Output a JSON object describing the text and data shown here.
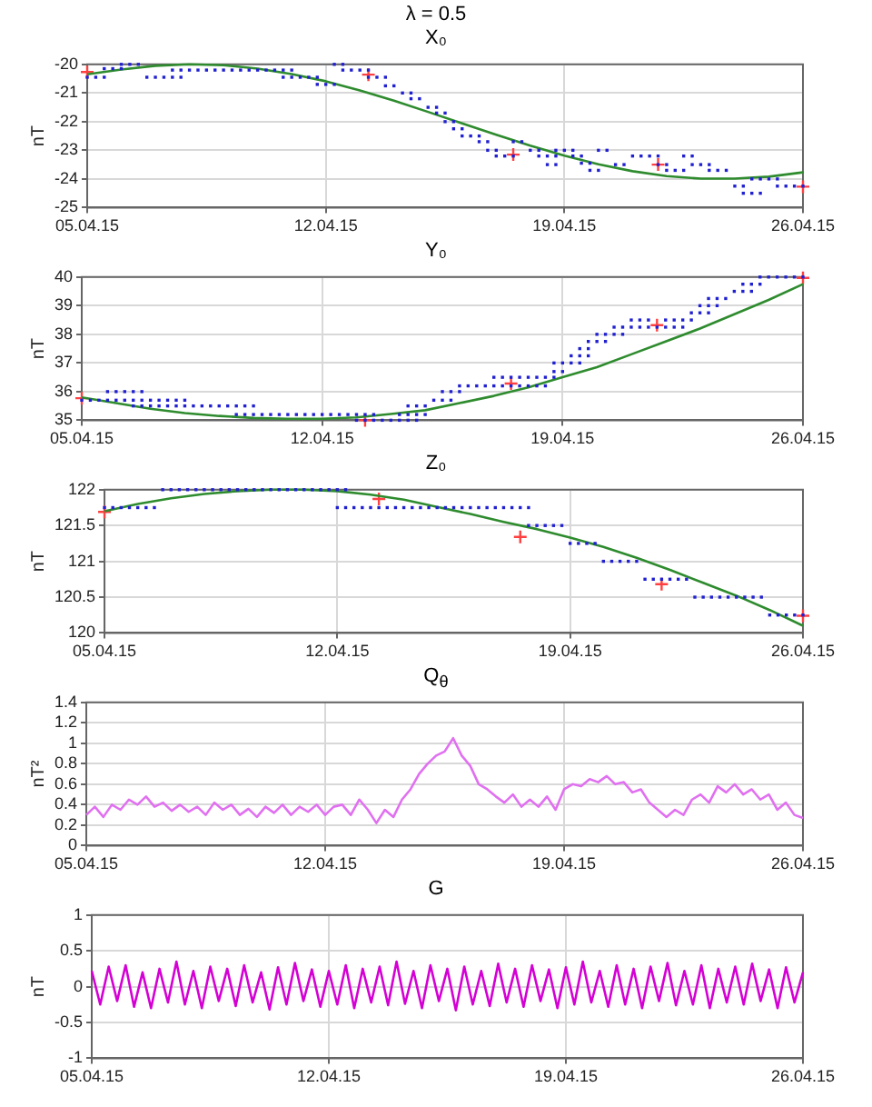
{
  "chart_data": [
    {
      "type": "line",
      "annotations": [
        "λ = 0.5"
      ],
      "title": "X₀",
      "ylabel": "nT",
      "xlim": [
        "--04-05",
        "--04-26"
      ],
      "xticks": [
        {
          "value": "--04-05",
          "label": "05.04.15"
        },
        {
          "value": "--04-12",
          "label": "12.04.15"
        },
        {
          "value": "--04-19",
          "label": "19.04.15"
        },
        {
          "value": "--04-26",
          "label": "26.04.15"
        }
      ],
      "ylim": [
        -25,
        -20
      ],
      "yticks": [
        -25,
        -24,
        -23,
        -22,
        -21,
        -20
      ],
      "grid": true,
      "series": [
        {
          "type": "scatter",
          "marker": "square",
          "color": "#2020d0",
          "x": [
            "--04-05",
            "--04-05T06:00",
            "--04-05T12:00",
            "--04-05T12:00",
            "--04-05T18:00",
            "--04-06",
            "--04-06",
            "--04-06T06:00",
            "--04-06T12:00",
            "--04-06T18:00",
            "--04-07",
            "--04-07T06:00",
            "--04-07T12:00",
            "--04-07T18:00",
            "--04-07T12:00",
            "--04-07T18:00",
            "--04-08",
            "--04-08T06:00",
            "--04-08T12:00",
            "--04-08T18:00",
            "--04-09",
            "--04-09T06:00",
            "--04-09T12:00",
            "--04-09T18:00",
            "--04-10",
            "--04-10T06:00",
            "--04-10T12:00",
            "--04-10T18:00",
            "--04-11",
            "--04-10T18:00",
            "--04-11",
            "--04-11T06:00",
            "--04-11T12:00",
            "--04-11T18:00",
            "--04-11T18:00",
            "--04-12",
            "--04-12T06:00",
            "--04-12T06:00",
            "--04-12T12:00",
            "--04-12T12:00",
            "--04-12T18:00",
            "--04-13",
            "--04-13T06:00",
            "--04-13T06:00",
            "--04-13T12:00",
            "--04-13T18:00",
            "--04-13T18:00",
            "--04-14",
            "--04-14T06:00",
            "--04-14T12:00",
            "--04-14T12:00",
            "--04-14T18:00",
            "--04-15",
            "--04-15T06:00",
            "--04-15T06:00",
            "--04-15T12:00",
            "--04-15T12:00",
            "--04-15T18:00",
            "--04-15T18:00",
            "--04-16",
            "--04-16",
            "--04-16T06:00",
            "--04-16T12:00",
            "--04-16T12:00",
            "--04-16T18:00",
            "--04-16T18:00",
            "--04-17",
            "--04-17",
            "--04-17T06:00",
            "--04-17T12:00",
            "--04-17T12:00",
            "--04-17T18:00",
            "--04-18",
            "--04-18T06:00",
            "--04-18T06:00",
            "--04-18T12:00",
            "--04-18T18:00",
            "--04-18T12:00",
            "--04-18T18:00",
            "--04-18T18:00",
            "--04-19",
            "--04-19T06:00",
            "--04-19T06:00",
            "--04-19T12:00",
            "--04-19T12:00",
            "--04-19T18:00",
            "--04-19T18:00",
            "--04-20",
            "--04-20",
            "--04-20T06:00",
            "--04-20T12:00",
            "--04-20T18:00",
            "--04-21",
            "--04-21T06:00",
            "--04-21T12:00",
            "--04-21T18:00",
            "--04-21T18:00",
            "--04-22",
            "--04-22",
            "--04-22T06:00",
            "--04-22T12:00",
            "--04-22T12:00",
            "--04-22T18:00",
            "--04-22T18:00",
            "--04-23",
            "--04-23T06:00",
            "--04-23T06:00",
            "--04-23T12:00",
            "--04-23T18:00",
            "--04-24",
            "--04-24T06:00",
            "--04-24T06:00",
            "--04-24T12:00",
            "--04-24T18:00",
            "--04-24T12:00",
            "--04-24T18:00",
            "--04-25",
            "--04-25T06:00",
            "--04-25T06:00",
            "--04-25T12:00",
            "--04-25T18:00",
            "--04-26"
          ],
          "values": [
            -20.45,
            -20.45,
            -20.45,
            -20.15,
            -20.15,
            -20.15,
            -20.0,
            -20.0,
            -20.0,
            -20.45,
            -20.45,
            -20.45,
            -20.45,
            -20.45,
            -20.2,
            -20.2,
            -20.2,
            -20.2,
            -20.2,
            -20.2,
            -20.2,
            -20.2,
            -20.2,
            -20.2,
            -20.2,
            -20.2,
            -20.2,
            -20.2,
            -20.2,
            -20.45,
            -20.45,
            -20.45,
            -20.45,
            -20.45,
            -20.7,
            -20.7,
            -20.7,
            -20.0,
            -20.0,
            -20.2,
            -20.2,
            -20.2,
            -20.2,
            -20.45,
            -20.45,
            -20.45,
            -20.75,
            -20.75,
            -21.0,
            -21.0,
            -21.2,
            -21.2,
            -21.5,
            -21.5,
            -21.7,
            -21.7,
            -22.0,
            -22.0,
            -22.25,
            -22.25,
            -22.5,
            -22.5,
            -22.5,
            -22.7,
            -22.7,
            -23.0,
            -23.0,
            -23.2,
            -23.2,
            -23.2,
            -22.7,
            -22.7,
            -23.0,
            -23.0,
            -23.2,
            -23.2,
            -23.2,
            -23.5,
            -23.5,
            -23.0,
            -23.0,
            -23.0,
            -23.2,
            -23.2,
            -23.45,
            -23.45,
            -23.7,
            -23.7,
            -23.0,
            -23.0,
            -23.5,
            -23.5,
            -23.2,
            -23.2,
            -23.2,
            -23.2,
            -23.5,
            -23.5,
            -23.7,
            -23.7,
            -23.7,
            -23.2,
            -23.2,
            -23.5,
            -23.5,
            -23.5,
            -23.7,
            -23.7,
            -23.7,
            -24.25,
            -24.25,
            -24.5,
            -24.5,
            -24.5,
            -24.0,
            -24.0,
            -24.0,
            -24.0,
            -24.25,
            -24.25,
            -24.25,
            -24.25
          ]
        },
        {
          "color": "#2e8b2e",
          "x": [
            "--04-05",
            "--04-06",
            "--04-07",
            "--04-08",
            "--04-09",
            "--04-10",
            "--04-11",
            "--04-12",
            "--04-13",
            "--04-14",
            "--04-15",
            "--04-16",
            "--04-17",
            "--04-18",
            "--04-19",
            "--04-20",
            "--04-21",
            "--04-22",
            "--04-23",
            "--04-24",
            "--04-25",
            "--04-26"
          ],
          "values": [
            -20.35,
            -20.18,
            -20.05,
            -20.0,
            -20.03,
            -20.15,
            -20.34,
            -20.59,
            -20.91,
            -21.27,
            -21.66,
            -22.06,
            -22.46,
            -22.84,
            -23.19,
            -23.49,
            -23.73,
            -23.9,
            -23.99,
            -23.99,
            -23.92,
            -23.77
          ]
        },
        {
          "type": "scatter",
          "marker": "cross",
          "color": "#ff4040",
          "x": [
            "--04-05",
            "--04-13T06:00",
            "--04-17T12:00",
            "--04-21T18:00",
            "--04-26"
          ],
          "values": [
            -20.27,
            -20.36,
            -23.15,
            -23.5,
            -24.27
          ]
        }
      ]
    },
    {
      "type": "line",
      "title": "Y₀",
      "ylabel": "nT",
      "xlim": [
        "--04-05",
        "--04-26"
      ],
      "xticks": [
        {
          "value": "--04-05",
          "label": "05.04.15"
        },
        {
          "value": "--04-12",
          "label": "12.04.15"
        },
        {
          "value": "--04-19",
          "label": "19.04.15"
        },
        {
          "value": "--04-26",
          "label": "26.04.15"
        }
      ],
      "ylim": [
        35,
        40
      ],
      "yticks": [
        35,
        36,
        37,
        38,
        39,
        40
      ],
      "grid": true,
      "series": [
        {
          "type": "scatter",
          "marker": "square",
          "color": "#2020d0",
          "x": [
            "--04-05",
            "--04-05T06:00",
            "--04-05T12:00",
            "--04-05T18:00",
            "--04-05T18:00",
            "--04-06",
            "--04-06T06:00",
            "--04-06T12:00",
            "--04-06T18:00",
            "--04-06",
            "--04-06T06:00",
            "--04-06T12:00",
            "--04-06T18:00",
            "--04-07",
            "--04-07T06:00",
            "--04-07T12:00",
            "--04-07T18:00",
            "--04-08",
            "--04-06T12:00",
            "--04-06T18:00",
            "--04-07",
            "--04-07T06:00",
            "--04-07T12:00",
            "--04-07T18:00",
            "--04-08",
            "--04-08T06:00",
            "--04-08T12:00",
            "--04-08T18:00",
            "--04-09",
            "--04-09T06:00",
            "--04-09T12:00",
            "--04-09T18:00",
            "--04-10",
            "--04-09T12:00",
            "--04-09T18:00",
            "--04-10",
            "--04-10T06:00",
            "--04-10T12:00",
            "--04-10T18:00",
            "--04-11",
            "--04-11T06:00",
            "--04-11T12:00",
            "--04-11T18:00",
            "--04-12",
            "--04-12T06:00",
            "--04-12T12:00",
            "--04-12T18:00",
            "--04-13",
            "--04-13T06:00",
            "--04-13T12:00",
            "--04-13",
            "--04-13T06:00",
            "--04-13T12:00",
            "--04-13T18:00",
            "--04-14",
            "--04-14T06:00",
            "--04-14T12:00",
            "--04-14T18:00",
            "--04-14T06:00",
            "--04-14T12:00",
            "--04-14T18:00",
            "--04-15",
            "--04-14T12:00",
            "--04-14T18:00",
            "--04-15",
            "--04-15T06:00",
            "--04-15T12:00",
            "--04-15T18:00",
            "--04-15T12:00",
            "--04-15T18:00",
            "--04-16",
            "--04-16",
            "--04-16T06:00",
            "--04-16T12:00",
            "--04-16T18:00",
            "--04-17",
            "--04-17T06:00",
            "--04-17T12:00",
            "--04-17T18:00",
            "--04-18",
            "--04-18T06:00",
            "--04-18T12:00",
            "--04-17",
            "--04-17T06:00",
            "--04-17T12:00",
            "--04-17T18:00",
            "--04-18",
            "--04-18T06:00",
            "--04-18T12:00",
            "--04-18T18:00",
            "--04-18T18:00",
            "--04-19",
            "--04-18T18:00",
            "--04-19",
            "--04-19T06:00",
            "--04-19T12:00",
            "--04-19T06:00",
            "--04-19T12:00",
            "--04-19T18:00",
            "--04-19T12:00",
            "--04-19T18:00",
            "--04-19T18:00",
            "--04-20",
            "--04-20T06:00",
            "--04-20",
            "--04-20T06:00",
            "--04-20T12:00",
            "--04-20T18:00",
            "--04-20T12:00",
            "--04-20T18:00",
            "--04-21",
            "--04-21T06:00",
            "--04-21T12:00",
            "--04-21T18:00",
            "--04-22",
            "--04-22T06:00",
            "--04-22T12:00",
            "--04-21",
            "--04-21T06:00",
            "--04-21T12:00",
            "--04-22",
            "--04-22T06:00",
            "--04-22T12:00",
            "--04-22T18:00",
            "--04-22T18:00",
            "--04-23",
            "--04-23T06:00",
            "--04-23",
            "--04-23T06:00",
            "--04-23T12:00",
            "--04-23T06:00",
            "--04-23T12:00",
            "--04-23T18:00",
            "--04-24",
            "--04-24T06:00",
            "--04-24T12:00",
            "--04-24T06:00",
            "--04-24T12:00",
            "--04-24T18:00",
            "--04-24T18:00",
            "--04-25",
            "--04-25T06:00",
            "--04-25T12:00",
            "--04-25T18:00",
            "--04-26"
          ],
          "values": [
            35.7,
            35.7,
            35.7,
            35.7,
            36.0,
            36.0,
            36.0,
            36.0,
            36.0,
            35.7,
            35.7,
            35.7,
            35.7,
            35.7,
            35.7,
            35.7,
            35.7,
            35.7,
            35.5,
            35.5,
            35.5,
            35.5,
            35.5,
            35.5,
            35.5,
            35.5,
            35.5,
            35.5,
            35.5,
            35.5,
            35.5,
            35.5,
            35.5,
            35.2,
            35.2,
            35.2,
            35.2,
            35.2,
            35.2,
            35.2,
            35.2,
            35.2,
            35.2,
            35.2,
            35.2,
            35.2,
            35.2,
            35.2,
            35.2,
            35.2,
            35.0,
            35.0,
            35.0,
            35.0,
            35.0,
            35.0,
            35.0,
            35.0,
            35.2,
            35.2,
            35.2,
            35.2,
            35.5,
            35.5,
            35.5,
            35.7,
            35.7,
            35.7,
            36.0,
            36.0,
            36.0,
            36.2,
            36.2,
            36.2,
            36.2,
            36.2,
            36.2,
            36.2,
            36.2,
            36.2,
            36.2,
            36.2,
            36.5,
            36.5,
            36.5,
            36.5,
            36.5,
            36.5,
            36.5,
            36.5,
            36.7,
            36.7,
            37.0,
            37.0,
            37.0,
            37.0,
            37.25,
            37.25,
            37.25,
            37.5,
            37.5,
            37.75,
            37.75,
            37.75,
            38.0,
            38.0,
            38.0,
            38.0,
            38.25,
            38.25,
            38.25,
            38.25,
            38.25,
            38.25,
            38.25,
            38.25,
            38.25,
            38.5,
            38.5,
            38.5,
            38.5,
            38.5,
            38.5,
            38.5,
            38.75,
            38.75,
            38.75,
            39.0,
            39.0,
            39.0,
            39.25,
            39.25,
            39.25,
            39.5,
            39.5,
            39.5,
            39.75,
            39.75,
            39.75,
            40.0,
            40.0,
            40.0,
            40.0,
            40.0,
            40.0
          ]
        },
        {
          "color": "#2e8b2e",
          "x": [
            "--04-05",
            "--04-06",
            "--04-07",
            "--04-08",
            "--04-09",
            "--04-10",
            "--04-11",
            "--04-12",
            "--04-13",
            "--04-14",
            "--04-15",
            "--04-16",
            "--04-17",
            "--04-18",
            "--04-19",
            "--04-20",
            "--04-21",
            "--04-22",
            "--04-23",
            "--04-24",
            "--04-25",
            "--04-26"
          ],
          "values": [
            35.8,
            35.6,
            35.4,
            35.25,
            35.15,
            35.08,
            35.05,
            35.05,
            35.1,
            35.22,
            35.35,
            35.6,
            35.85,
            36.15,
            36.5,
            36.85,
            37.3,
            37.75,
            38.2,
            38.7,
            39.2,
            39.75
          ]
        },
        {
          "type": "scatter",
          "marker": "cross",
          "color": "#ff4040",
          "x": [
            "--04-05",
            "--04-13T06:00",
            "--04-17T12:00",
            "--04-21T18:00",
            "--04-26"
          ],
          "values": [
            35.77,
            35.0,
            36.28,
            38.32,
            39.97
          ]
        }
      ]
    },
    {
      "type": "line",
      "title": "Z₀",
      "ylabel": "nT",
      "xlim": [
        "--04-05",
        "--04-26"
      ],
      "xticks": [
        {
          "value": "--04-05",
          "label": "05.04.15"
        },
        {
          "value": "--04-12",
          "label": "12.04.15"
        },
        {
          "value": "--04-19",
          "label": "19.04.15"
        },
        {
          "value": "--04-26",
          "label": "26.04.15"
        }
      ],
      "ylim": [
        120,
        122
      ],
      "yticks": [
        120,
        120.5,
        121,
        121.5,
        122
      ],
      "grid": true,
      "series": [
        {
          "type": "scatter",
          "marker": "square",
          "color": "#2020d0",
          "x": [
            "--04-05",
            "--04-05T06:00",
            "--04-05T12:00",
            "--04-05T18:00",
            "--04-06",
            "--04-06T06:00",
            "--04-06T12:00",
            "--04-06T18:00",
            "--04-07",
            "--04-07T06:00",
            "--04-07T12:00",
            "--04-07T18:00",
            "--04-08",
            "--04-08T06:00",
            "--04-08T12:00",
            "--04-08T18:00",
            "--04-09",
            "--04-09T06:00",
            "--04-09T12:00",
            "--04-09T18:00",
            "--04-10",
            "--04-10T06:00",
            "--04-10T12:00",
            "--04-10T18:00",
            "--04-11",
            "--04-11T06:00",
            "--04-11T12:00",
            "--04-11T18:00",
            "--04-12",
            "--04-12T06:00",
            "--04-12",
            "--04-12T06:00",
            "--04-12T12:00",
            "--04-12T18:00",
            "--04-13",
            "--04-13T06:00",
            "--04-13T12:00",
            "--04-13T18:00",
            "--04-14",
            "--04-14T06:00",
            "--04-14T12:00",
            "--04-14T18:00",
            "--04-15",
            "--04-15T06:00",
            "--04-15T12:00",
            "--04-15T18:00",
            "--04-16",
            "--04-16T06:00",
            "--04-16T12:00",
            "--04-16T18:00",
            "--04-17",
            "--04-17T06:00",
            "--04-17T12:00",
            "--04-17T18:00",
            "--04-17T18:00",
            "--04-18",
            "--04-18T06:00",
            "--04-18T12:00",
            "--04-18T18:00",
            "--04-19",
            "--04-19T06:00",
            "--04-19T12:00",
            "--04-19T18:00",
            "--04-20",
            "--04-20T06:00",
            "--04-20T12:00",
            "--04-20T18:00",
            "--04-21",
            "--04-21T06:00",
            "--04-21T12:00",
            "--04-21T18:00",
            "--04-22",
            "--04-22T06:00",
            "--04-22T12:00",
            "--04-22T18:00",
            "--04-23",
            "--04-23T06:00",
            "--04-23T12:00",
            "--04-23T18:00",
            "--04-24",
            "--04-24T06:00",
            "--04-24T12:00",
            "--04-24T18:00",
            "--04-25",
            "--04-25T06:00",
            "--04-25T12:00",
            "--04-25T18:00",
            "--04-26"
          ],
          "values": [
            121.75,
            121.75,
            121.75,
            121.75,
            121.75,
            121.75,
            121.75,
            122.0,
            122.0,
            122.0,
            122.0,
            122.0,
            122.0,
            122.0,
            122.0,
            122.0,
            122.0,
            122.0,
            122.0,
            122.0,
            122.0,
            122.0,
            122.0,
            122.0,
            122.0,
            122.0,
            122.0,
            122.0,
            122.0,
            122.0,
            121.75,
            121.75,
            121.75,
            121.75,
            121.75,
            121.75,
            121.75,
            121.75,
            121.75,
            121.75,
            121.75,
            121.75,
            121.75,
            121.75,
            121.75,
            121.75,
            121.75,
            121.75,
            121.75,
            121.75,
            121.75,
            121.75,
            121.75,
            121.75,
            121.5,
            121.5,
            121.5,
            121.5,
            121.5,
            121.25,
            121.25,
            121.25,
            121.25,
            121.0,
            121.0,
            121.0,
            121.0,
            121.0,
            120.75,
            120.75,
            120.75,
            120.75,
            120.75,
            120.75,
            120.5,
            120.5,
            120.5,
            120.5,
            120.5,
            120.5,
            120.5,
            120.5,
            120.5,
            120.25,
            120.25,
            120.25,
            120.25,
            120.25
          ]
        },
        {
          "color": "#2e8b2e",
          "x": [
            "--04-05",
            "--04-06",
            "--04-07",
            "--04-08",
            "--04-09",
            "--04-10",
            "--04-11",
            "--04-12",
            "--04-13",
            "--04-14",
            "--04-15",
            "--04-16",
            "--04-17",
            "--04-18",
            "--04-19",
            "--04-20",
            "--04-21",
            "--04-22",
            "--04-23",
            "--04-24",
            "--04-25",
            "--04-26"
          ],
          "values": [
            121.7,
            121.8,
            121.88,
            121.94,
            121.98,
            122.0,
            122.0,
            121.98,
            121.93,
            121.86,
            121.76,
            121.66,
            121.55,
            121.45,
            121.33,
            121.2,
            121.05,
            120.88,
            120.7,
            120.52,
            120.32,
            120.1
          ]
        },
        {
          "type": "scatter",
          "marker": "cross",
          "color": "#ff4040",
          "x": [
            "--04-05",
            "--04-13T06:00",
            "--04-17T12:00",
            "--04-21T18:00",
            "--04-26"
          ],
          "values": [
            121.69,
            121.87,
            121.34,
            120.68,
            120.24
          ]
        }
      ]
    },
    {
      "type": "line",
      "title": "Q$_{θ}$",
      "ylabel": "nT²",
      "xlim": [
        "--04-05",
        "--04-26"
      ],
      "xticks": [
        {
          "value": "--04-05",
          "label": "05.04.15"
        },
        {
          "value": "--04-12",
          "label": "12.04.15"
        },
        {
          "value": "--04-19",
          "label": "19.04.15"
        },
        {
          "value": "--04-26",
          "label": "26.04.15"
        }
      ],
      "ylim": [
        0,
        1.4
      ],
      "yticks": [
        0,
        0.2,
        0.4,
        0.6,
        0.8,
        1,
        1.2,
        1.4
      ],
      "grid": true,
      "x": [
        "--04-05",
        "--04-05T06:00",
        "--04-05T12:00",
        "--04-05T18:00",
        "--04-06",
        "--04-06T06:00",
        "--04-06T12:00",
        "--04-06T18:00",
        "--04-07",
        "--04-07T06:00",
        "--04-07T12:00",
        "--04-07T18:00",
        "--04-08",
        "--04-08T06:00",
        "--04-08T12:00",
        "--04-08T18:00",
        "--04-09",
        "--04-09T06:00",
        "--04-09T12:00",
        "--04-09T18:00",
        "--04-10",
        "--04-10T06:00",
        "--04-10T12:00",
        "--04-10T18:00",
        "--04-11",
        "--04-11T06:00",
        "--04-11T12:00",
        "--04-11T18:00",
        "--04-12",
        "--04-12T06:00",
        "--04-12T12:00",
        "--04-12T18:00",
        "--04-13",
        "--04-13T06:00",
        "--04-13T12:00",
        "--04-13T18:00",
        "--04-14",
        "--04-14T06:00",
        "--04-14T12:00",
        "--04-14T18:00",
        "--04-15",
        "--04-15T06:00",
        "--04-15T12:00",
        "--04-15T18:00",
        "--04-16",
        "--04-16T06:00",
        "--04-16T12:00",
        "--04-16T18:00",
        "--04-17",
        "--04-17T06:00",
        "--04-17T12:00",
        "--04-17T18:00",
        "--04-18",
        "--04-18T06:00",
        "--04-18T12:00",
        "--04-18T18:00",
        "--04-19",
        "--04-19T06:00",
        "--04-19T12:00",
        "--04-19T18:00",
        "--04-20",
        "--04-20T06:00",
        "--04-20T12:00",
        "--04-20T18:00",
        "--04-21",
        "--04-21T06:00",
        "--04-21T12:00",
        "--04-21T18:00",
        "--04-22",
        "--04-22T06:00",
        "--04-22T12:00",
        "--04-22T18:00",
        "--04-23",
        "--04-23T06:00",
        "--04-23T12:00",
        "--04-23T18:00",
        "--04-24",
        "--04-24T06:00",
        "--04-24T12:00",
        "--04-24T18:00",
        "--04-25",
        "--04-25T06:00",
        "--04-25T12:00",
        "--04-25T18:00",
        "--04-26"
      ],
      "series": [
        {
          "color": "#e070f0",
          "values": [
            0.3,
            0.38,
            0.28,
            0.4,
            0.35,
            0.45,
            0.4,
            0.48,
            0.38,
            0.42,
            0.34,
            0.4,
            0.33,
            0.38,
            0.3,
            0.42,
            0.35,
            0.4,
            0.3,
            0.36,
            0.28,
            0.38,
            0.32,
            0.4,
            0.3,
            0.38,
            0.33,
            0.4,
            0.3,
            0.38,
            0.4,
            0.3,
            0.45,
            0.35,
            0.22,
            0.35,
            0.28,
            0.45,
            0.55,
            0.7,
            0.8,
            0.88,
            0.92,
            1.05,
            0.88,
            0.78,
            0.6,
            0.55,
            0.48,
            0.42,
            0.5,
            0.38,
            0.45,
            0.38,
            0.48,
            0.35,
            0.55,
            0.6,
            0.58,
            0.65,
            0.62,
            0.68,
            0.6,
            0.62,
            0.52,
            0.55,
            0.42,
            0.35,
            0.28,
            0.35,
            0.3,
            0.45,
            0.5,
            0.42,
            0.58,
            0.52,
            0.6,
            0.5,
            0.55,
            0.45,
            0.5,
            0.35,
            0.42,
            0.3,
            0.27
          ]
        }
      ]
    },
    {
      "type": "line",
      "title": "G",
      "ylabel": "nT",
      "xlim": [
        "--04-05",
        "--04-26"
      ],
      "xticks": [
        {
          "value": "--04-05",
          "label": "05.04.15"
        },
        {
          "value": "--04-12",
          "label": "12.04.15"
        },
        {
          "value": "--04-19",
          "label": "19.04.15"
        },
        {
          "value": "--04-26",
          "label": "26.04.15"
        }
      ],
      "ylim": [
        -1,
        1
      ],
      "yticks": [
        -1,
        -0.5,
        0,
        0.5,
        1
      ],
      "grid": true,
      "x": [
        "--04-05",
        "--04-05T06:00",
        "--04-05T12:00",
        "--04-05T18:00",
        "--04-06",
        "--04-06T06:00",
        "--04-06T12:00",
        "--04-06T18:00",
        "--04-07",
        "--04-07T06:00",
        "--04-07T12:00",
        "--04-07T18:00",
        "--04-08",
        "--04-08T06:00",
        "--04-08T12:00",
        "--04-08T18:00",
        "--04-09",
        "--04-09T06:00",
        "--04-09T12:00",
        "--04-09T18:00",
        "--04-10",
        "--04-10T06:00",
        "--04-10T12:00",
        "--04-10T18:00",
        "--04-11",
        "--04-11T06:00",
        "--04-11T12:00",
        "--04-11T18:00",
        "--04-12",
        "--04-12T06:00",
        "--04-12T12:00",
        "--04-12T18:00",
        "--04-13",
        "--04-13T06:00",
        "--04-13T12:00",
        "--04-13T18:00",
        "--04-14",
        "--04-14T06:00",
        "--04-14T12:00",
        "--04-14T18:00",
        "--04-15",
        "--04-15T06:00",
        "--04-15T12:00",
        "--04-15T18:00",
        "--04-16",
        "--04-16T06:00",
        "--04-16T12:00",
        "--04-16T18:00",
        "--04-17",
        "--04-17T06:00",
        "--04-17T12:00",
        "--04-17T18:00",
        "--04-18",
        "--04-18T06:00",
        "--04-18T12:00",
        "--04-18T18:00",
        "--04-19",
        "--04-19T06:00",
        "--04-19T12:00",
        "--04-19T18:00",
        "--04-20",
        "--04-20T06:00",
        "--04-20T12:00",
        "--04-20T18:00",
        "--04-21",
        "--04-21T06:00",
        "--04-21T12:00",
        "--04-21T18:00",
        "--04-22",
        "--04-22T06:00",
        "--04-22T12:00",
        "--04-22T18:00",
        "--04-23",
        "--04-23T06:00",
        "--04-23T12:00",
        "--04-23T18:00",
        "--04-24",
        "--04-24T06:00",
        "--04-24T12:00",
        "--04-24T18:00",
        "--04-25",
        "--04-25T06:00",
        "--04-25T12:00",
        "--04-25T18:00",
        "--04-26"
      ],
      "series": [
        {
          "color": "#d400d4",
          "values": [
            0.22,
            -0.25,
            0.28,
            -0.2,
            0.3,
            -0.28,
            0.2,
            -0.3,
            0.25,
            -0.22,
            0.35,
            -0.25,
            0.22,
            -0.3,
            0.28,
            -0.2,
            0.25,
            -0.27,
            0.3,
            -0.22,
            0.2,
            -0.32,
            0.27,
            -0.25,
            0.33,
            -0.2,
            0.24,
            -0.28,
            0.22,
            -0.25,
            0.3,
            -0.3,
            0.25,
            -0.22,
            0.28,
            -0.26,
            0.35,
            -0.24,
            0.22,
            -0.3,
            0.3,
            -0.2,
            0.25,
            -0.33,
            0.28,
            -0.25,
            0.22,
            -0.27,
            0.32,
            -0.22,
            0.25,
            -0.28,
            0.3,
            -0.2,
            0.24,
            -0.3,
            0.27,
            -0.25,
            0.35,
            -0.22,
            0.22,
            -0.28,
            0.3,
            -0.25,
            0.25,
            -0.3,
            0.28,
            -0.2,
            0.33,
            -0.26,
            0.22,
            -0.25,
            0.3,
            -0.3,
            0.25,
            -0.22,
            0.28,
            -0.25,
            0.32,
            -0.2,
            0.24,
            -0.3,
            0.27,
            -0.22,
            0.2
          ]
        }
      ]
    }
  ]
}
